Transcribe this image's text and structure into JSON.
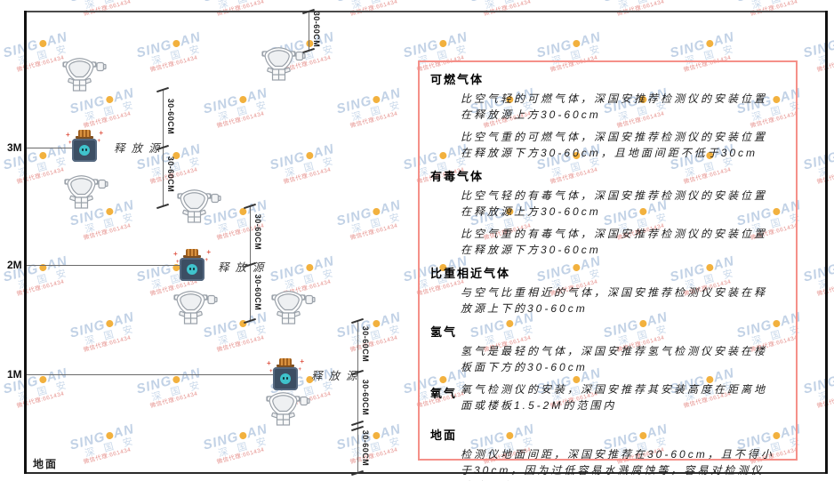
{
  "diagram": {
    "height_labels": {
      "m3": "3M",
      "m2": "2M",
      "m1": "1M"
    },
    "ground_label": "地面",
    "release_source_label": "释放源",
    "dimension_label": "30-60CM"
  },
  "panel": {
    "sections": [
      {
        "heading": "可燃气体",
        "paras": [
          "比空气轻的可燃气体，深国安推荐检测仪的安装位置在释放源上方30-60cm",
          "比空气重的可燃气体，深国安推荐检测仪的安装位置在释放源下方30-60cm，且地面间距不低于30cm"
        ]
      },
      {
        "heading": "有毒气体",
        "paras": [
          "比空气轻的有毒气体，深国安推荐检测仪的安装位置在释放源上方30-60cm",
          "比空气重的有毒气体，深国安推荐检测仪的安装位置在释放源下方30-60cm"
        ]
      },
      {
        "heading": "比重相近气体",
        "paras": [
          "与空气比重相近的气体，深国安推荐检测仪安装在释放源上下的30-60cm"
        ]
      },
      {
        "heading": "氢气",
        "paras": [
          "氢气是最轻的气体，深国安推荐氢气检测仪安装在楼板面下方的30-60cm"
        ]
      },
      {
        "heading": "氧气",
        "paras": [
          "氧气检测仪的安装，深国安推荐其安装高度在距离地面或楼板1.5-2M的范围内"
        ]
      },
      {
        "heading": "地面",
        "paras": [
          "检测仪地面间距，深国安推荐在30-60cm，且不得小于30cm，因为过低容易水溅腐蚀等，容易对检测仪造成伤害"
        ]
      }
    ]
  },
  "watermark": {
    "brand_left": "SING",
    "brand_right": "AN",
    "brand_cn": "深 国 安",
    "sub_text": "微信代理:661434"
  },
  "colors": {
    "panel_border": "#f59089",
    "watermark_blue": "#c2d2e6",
    "watermark_orange": "#f2b13e",
    "watermark_red": "#e6928e",
    "source_body": "#3c4e63",
    "source_cap": "#d8913f",
    "source_face": "#3fc3cc",
    "line_dark": "#111111"
  }
}
